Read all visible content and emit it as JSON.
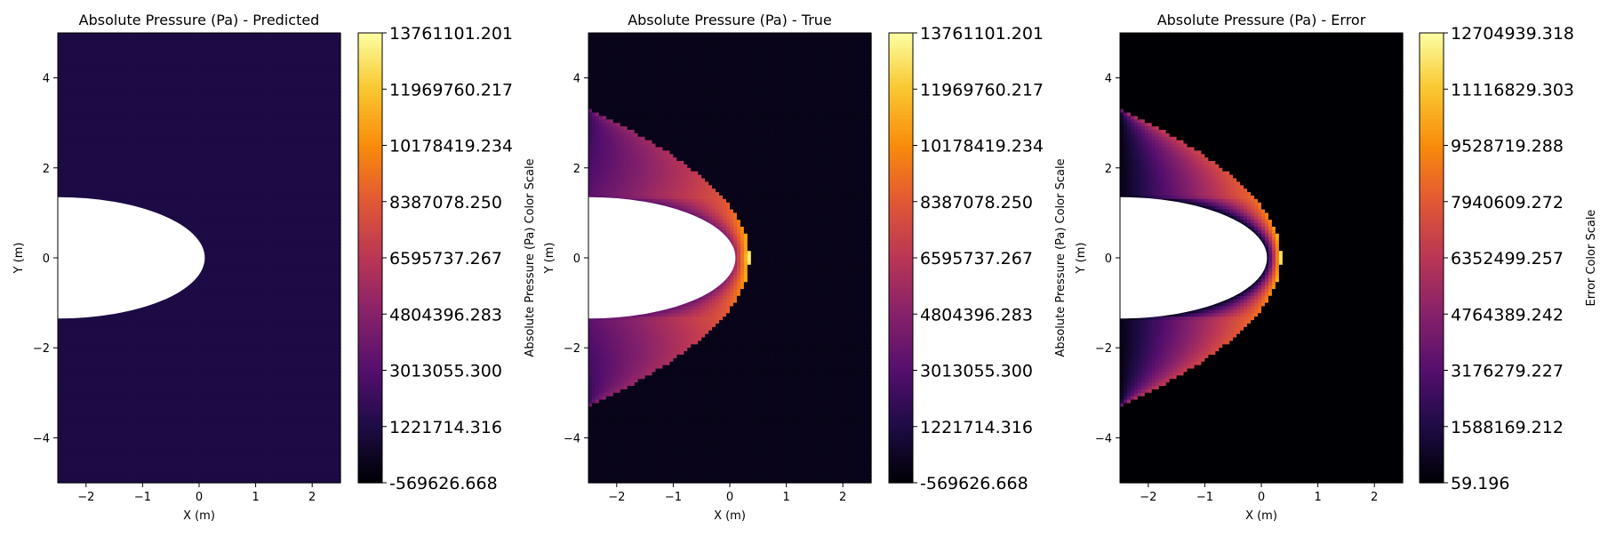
{
  "chart_data": [
    {
      "type": "heatmap",
      "title": "Absolute Pressure (Pa) - Predicted",
      "xlabel": "X (m)",
      "ylabel": "Y (m)",
      "xlim": [
        -2.5,
        2.5
      ],
      "ylim": [
        -5,
        5
      ],
      "xticks": [
        -2,
        -1,
        0,
        1,
        2
      ],
      "yticks": [
        -4,
        -2,
        0,
        2,
        4
      ],
      "colormap": "inferno",
      "field": "uniform",
      "uniform_value": 1200000.0,
      "body": {
        "shape": "half-ellipse",
        "nose_x": 0.1,
        "half_height": 1.35
      },
      "colorbar": {
        "label": "Absolute Pressure (Pa) Color Scale",
        "min": -569626.668,
        "max": 13761101.201,
        "ticks": [
          "13761101.201",
          "11969760.217",
          "10178419.234",
          "8387078.250",
          "6595737.267",
          "4804396.283",
          "3013055.300",
          "1221714.316",
          "-569626.668"
        ]
      }
    },
    {
      "type": "heatmap",
      "title": "Absolute Pressure (Pa) - True",
      "xlabel": "X (m)",
      "ylabel": "Y (m)",
      "xlim": [
        -2.5,
        2.5
      ],
      "ylim": [
        -5,
        5
      ],
      "xticks": [
        -2,
        -1,
        0,
        1,
        2
      ],
      "yticks": [
        -4,
        -2,
        0,
        2,
        4
      ],
      "colormap": "inferno",
      "field": "bow-shock",
      "body": {
        "shape": "half-ellipse",
        "nose_x": 0.1,
        "half_height": 1.35
      },
      "shock": {
        "nose_x": 0.35,
        "half_height_at_left_edge": 3.3
      },
      "colorbar": {
        "label": "Absolute Pressure (Pa) Color Scale",
        "min": -569626.668,
        "max": 13761101.201,
        "ticks": [
          "13761101.201",
          "11969760.217",
          "10178419.234",
          "8387078.250",
          "6595737.267",
          "4804396.283",
          "3013055.300",
          "1221714.316",
          "-569626.668"
        ]
      }
    },
    {
      "type": "heatmap",
      "title": "Absolute Pressure (Pa) - Error",
      "xlabel": "X (m)",
      "ylabel": "Y (m)",
      "xlim": [
        -2.5,
        2.5
      ],
      "ylim": [
        -5,
        5
      ],
      "xticks": [
        -2,
        -1,
        0,
        1,
        2
      ],
      "yticks": [
        -4,
        -2,
        0,
        2,
        4
      ],
      "colormap": "inferno",
      "field": "bow-shock-error",
      "body": {
        "shape": "half-ellipse",
        "nose_x": 0.1,
        "half_height": 1.35
      },
      "shock": {
        "nose_x": 0.35,
        "half_height_at_left_edge": 3.3
      },
      "colorbar": {
        "label": "Error Color Scale",
        "min": 59.196,
        "max": 12704939.318,
        "ticks": [
          "12704939.318",
          "11116829.303",
          "9528719.288",
          "7940609.272",
          "6352499.257",
          "4764389.242",
          "3176279.227",
          "1588169.212",
          "59.196"
        ]
      }
    }
  ]
}
